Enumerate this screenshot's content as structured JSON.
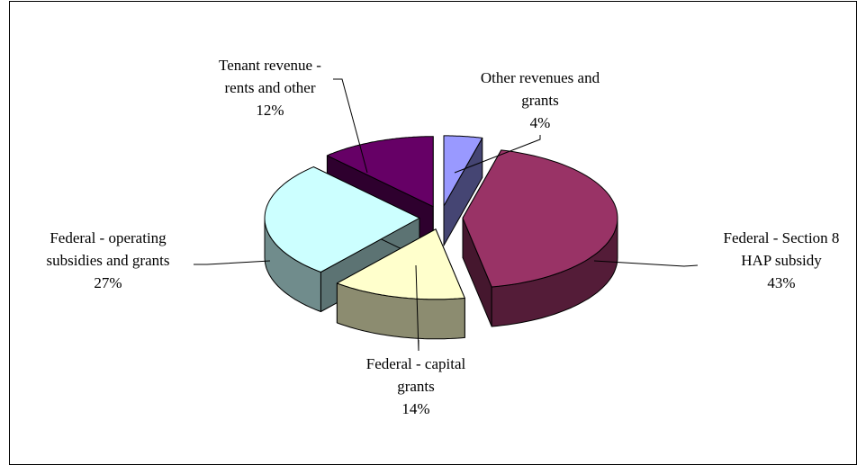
{
  "chart_data": {
    "type": "pie3d",
    "categories": [
      "Other revenues and grants",
      "Federal - Section 8 HAP subsidy",
      "Federal - capital grants",
      "Federal - operating subsidies and grants",
      "Tenant revenue - rents and other"
    ],
    "values": [
      4,
      43,
      14,
      27,
      12
    ],
    "value_labels": [
      "4%",
      "43%",
      "14%",
      "27%",
      "12%"
    ],
    "colors": [
      "#9999ff",
      "#993366",
      "#ffffcc",
      "#ccffff",
      "#660066"
    ]
  }
}
